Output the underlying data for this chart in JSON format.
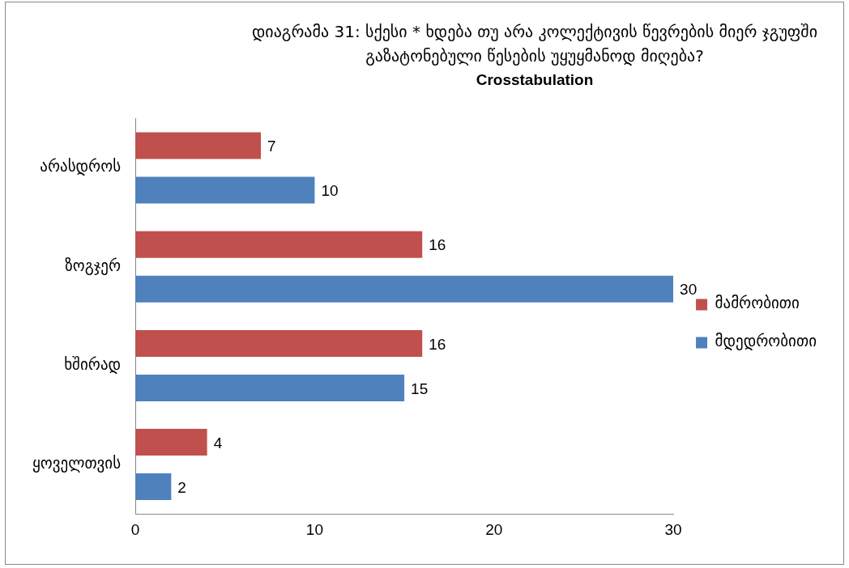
{
  "chart_data": {
    "type": "bar",
    "orientation": "horizontal",
    "title": "დიაგრამა 31: სქესი * ხდება თუ არა კოლექტივის წევრების მიერ ჯგუფში გაზატონებული წესების უყუყმანოდ მიღება?",
    "subtitle": "Crosstabulation",
    "categories": [
      "არასდროს",
      "ზოგჯერ",
      "ხშირად",
      "ყოველთვის"
    ],
    "series": [
      {
        "name": "მამრობითი",
        "color": "#c0504d",
        "values": [
          7,
          16,
          16,
          4
        ]
      },
      {
        "name": "მდედრობითი",
        "color": "#4f81bd",
        "values": [
          10,
          30,
          15,
          2
        ]
      }
    ],
    "xlim": [
      0,
      30
    ],
    "xticks": [
      0,
      10,
      20,
      30
    ],
    "grid": false,
    "legend": "right",
    "data_labels": true
  }
}
